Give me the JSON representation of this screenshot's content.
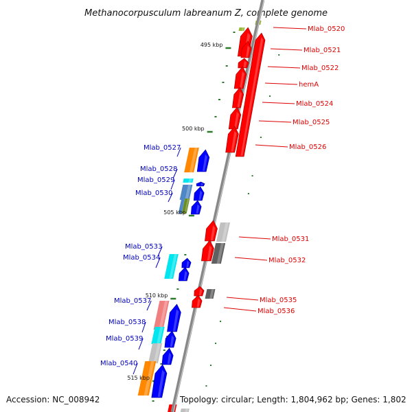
{
  "title": "Methanocorpusculum labreanum Z, complete genome",
  "footer": {
    "accession": "Accession: NC_008942",
    "topology": "Topology: circular; Length: 1,804,962 bp; Genes: 1,802"
  },
  "colors": {
    "backbone": "#888888",
    "tick": "#2a7a2a",
    "forward_label": "#dd0000",
    "reverse_label": "#0000bb"
  },
  "scale_marks": [
    {
      "kbp": 495,
      "label": "495 kbp"
    },
    {
      "kbp": 500,
      "label": "500 kbp"
    },
    {
      "kbp": 505,
      "label": "505 kbp"
    },
    {
      "kbp": 510,
      "label": "510 kbp"
    },
    {
      "kbp": 515,
      "label": "515 kbp"
    }
  ],
  "genes": [
    {
      "name": "Mlab_0520",
      "strand": "+",
      "label_side": "right"
    },
    {
      "name": "Mlab_0521",
      "strand": "+",
      "label_side": "right"
    },
    {
      "name": "Mlab_0522",
      "strand": "+",
      "label_side": "right"
    },
    {
      "name": "hemA",
      "strand": "+",
      "label_side": "right"
    },
    {
      "name": "Mlab_0524",
      "strand": "+",
      "label_side": "right"
    },
    {
      "name": "Mlab_0525",
      "strand": "+",
      "label_side": "right"
    },
    {
      "name": "Mlab_0526",
      "strand": "+",
      "label_side": "right"
    },
    {
      "name": "Mlab_0527",
      "strand": "-",
      "label_side": "left"
    },
    {
      "name": "Mlab_0528",
      "strand": "-",
      "label_side": "left"
    },
    {
      "name": "Mlab_0529",
      "strand": "-",
      "label_side": "left"
    },
    {
      "name": "Mlab_0530",
      "strand": "-",
      "label_side": "left"
    },
    {
      "name": "Mlab_0531",
      "strand": "+",
      "label_side": "right"
    },
    {
      "name": "Mlab_0532",
      "strand": "+",
      "label_side": "right"
    },
    {
      "name": "Mlab_0533",
      "strand": "-",
      "label_side": "left"
    },
    {
      "name": "Mlab_0534",
      "strand": "-",
      "label_side": "left"
    },
    {
      "name": "Mlab_0535",
      "strand": "+",
      "label_side": "right"
    },
    {
      "name": "Mlab_0536",
      "strand": "+",
      "label_side": "right"
    },
    {
      "name": "Mlab_0537",
      "strand": "-",
      "label_side": "left"
    },
    {
      "name": "Mlab_0538",
      "strand": "-",
      "label_side": "left"
    },
    {
      "name": "Mlab_0539",
      "strand": "-",
      "label_side": "left"
    },
    {
      "name": "Mlab_0540",
      "strand": "-",
      "label_side": "left"
    }
  ]
}
